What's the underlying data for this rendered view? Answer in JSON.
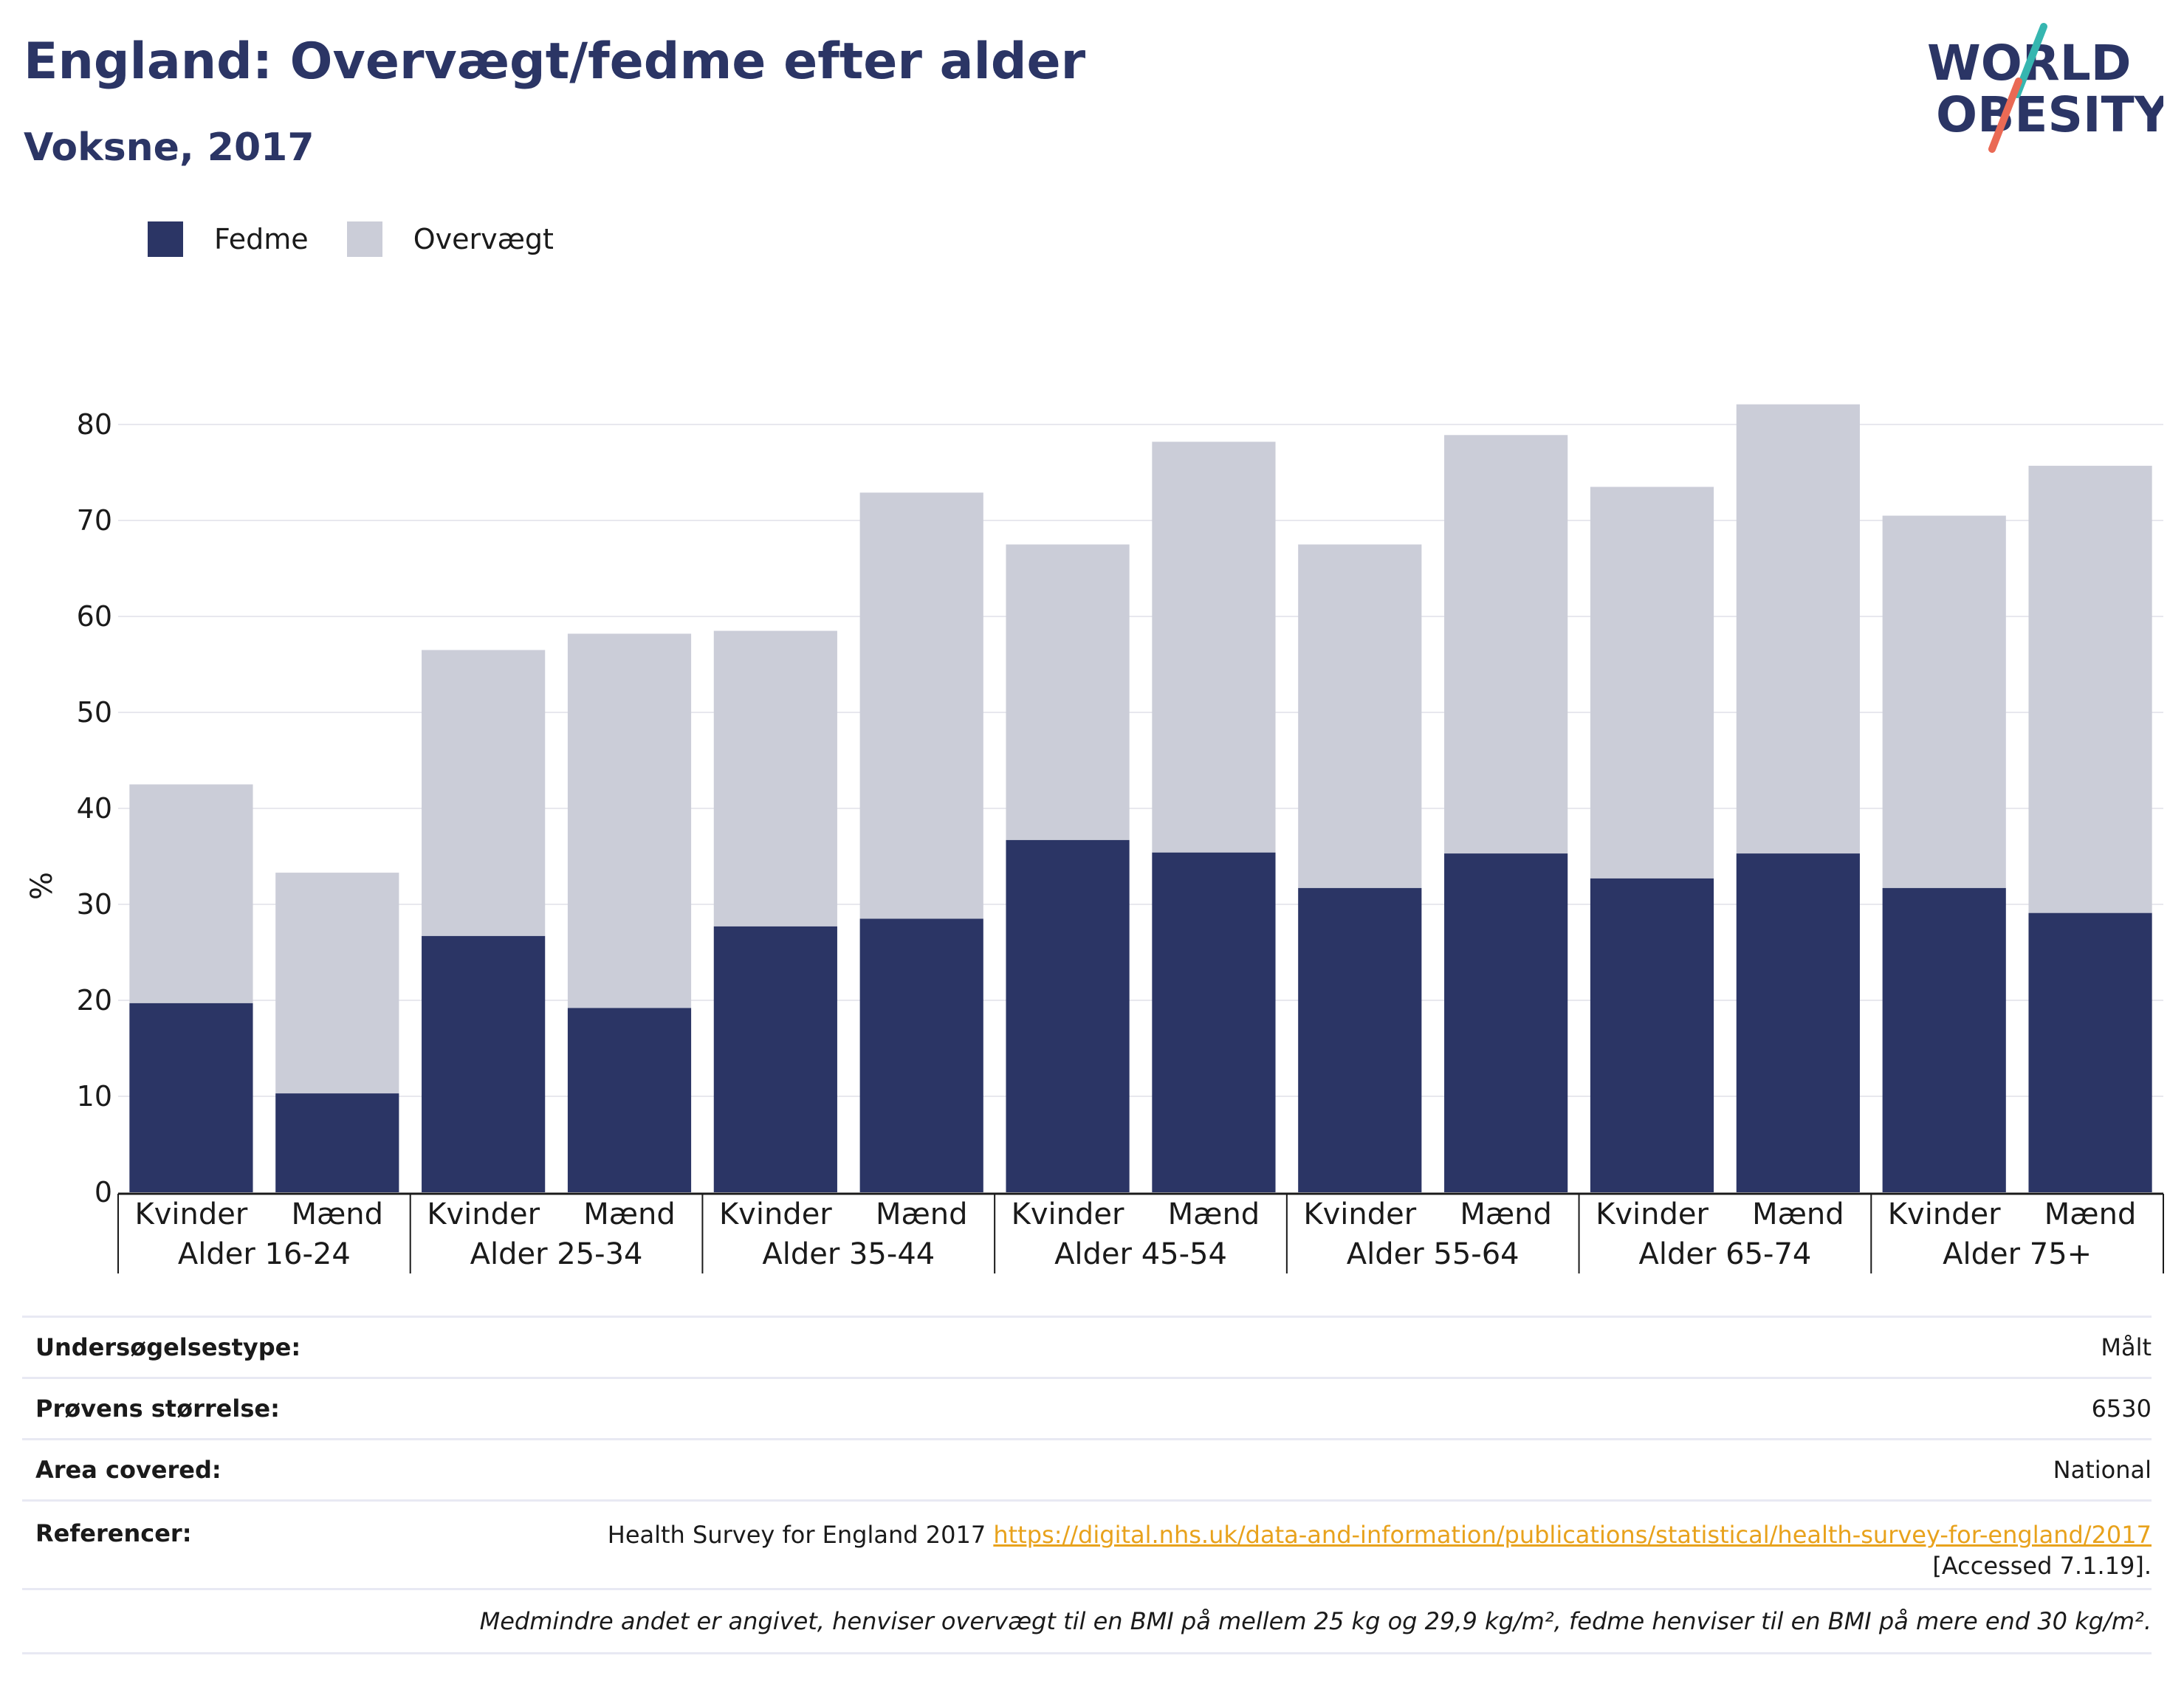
{
  "header": {
    "title": "England: Overvægt/fedme efter alder",
    "subtitle": "Voksne, 2017",
    "logo_line1": "WORLD",
    "logo_line2": "OBESITY"
  },
  "legend": {
    "items": [
      {
        "label": "Fedme",
        "color": "#2b3565"
      },
      {
        "label": "Overvægt",
        "color": "#cbcdd8"
      }
    ]
  },
  "chart_data": {
    "type": "bar",
    "stacked": true,
    "ylabel": "%",
    "ylim": [
      0,
      83
    ],
    "yticks": [
      0,
      10,
      20,
      30,
      40,
      50,
      60,
      70,
      80
    ],
    "grid": true,
    "legend_position": "top-left",
    "groups": [
      "Alder 16-24",
      "Alder 25-34",
      "Alder 35-44",
      "Alder 45-54",
      "Alder 55-64",
      "Alder 65-74",
      "Alder 75+"
    ],
    "subcategories": [
      "Kvinder",
      "Mænd"
    ],
    "series": [
      {
        "name": "Fedme",
        "color": "#2b3565",
        "values": [
          19.7,
          10.3,
          26.7,
          19.2,
          27.7,
          28.5,
          36.7,
          35.4,
          31.7,
          35.3,
          32.7,
          35.3,
          31.7,
          29.1
        ]
      },
      {
        "name": "Overvægt",
        "color": "#cbcdd8",
        "values": [
          22.8,
          23.0,
          29.8,
          39.0,
          30.8,
          44.4,
          30.8,
          42.8,
          35.8,
          43.6,
          40.8,
          46.8,
          38.8,
          46.6
        ]
      }
    ],
    "totals": [
      42.5,
      33.3,
      56.5,
      58.2,
      58.5,
      72.9,
      67.5,
      78.2,
      67.5,
      78.9,
      73.5,
      82.1,
      70.5,
      75.7
    ]
  },
  "meta": {
    "survey_type_label": "Undersøgelsestype:",
    "survey_type_value": "Målt",
    "sample_size_label": "Prøvens størrelse:",
    "sample_size_value": "6530",
    "area_label": "Area covered:",
    "area_value": "National",
    "references_label": "Referencer:",
    "references_text": "Health Survey for England 2017",
    "references_link": "https://digital.nhs.uk/data-and-information/publications/statistical/health-survey-for-england/2017",
    "references_accessed": "[Accessed 7.1.19].",
    "note": "Medmindre andet er angivet, henviser overvægt til en BMI på mellem 25 kg og 29,9 kg/m², fedme henviser til en BMI på mere end 30 kg/m²."
  }
}
